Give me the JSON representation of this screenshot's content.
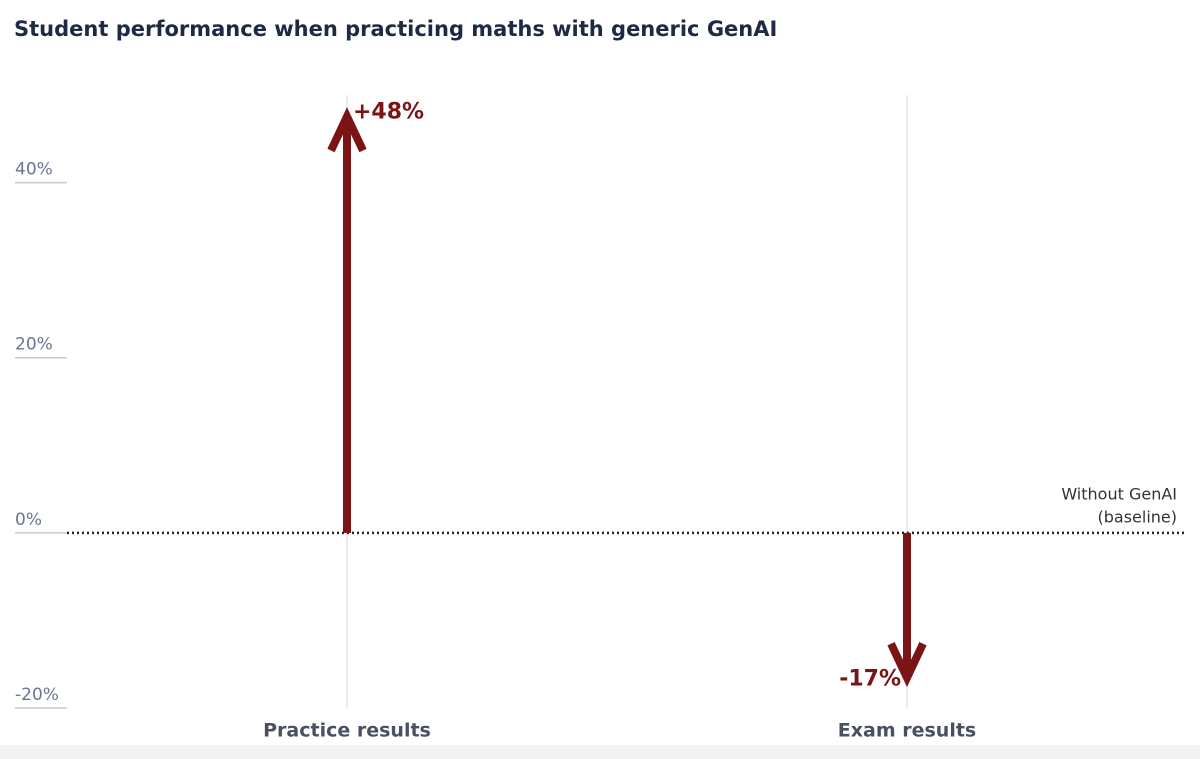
{
  "chart_data": {
    "type": "arrow",
    "title": "Student performance when practicing maths with generic GenAI",
    "categories": [
      "Practice results",
      "Exam results"
    ],
    "values": [
      48,
      -17
    ],
    "value_labels": [
      "+48%",
      "-17%"
    ],
    "color": "#7b1414",
    "ylim": [
      -20,
      50
    ],
    "yticks": [
      {
        "value": -20,
        "label": "-20%"
      },
      {
        "value": 0,
        "label": "0%"
      },
      {
        "value": 20,
        "label": "20%"
      },
      {
        "value": 40,
        "label": "40%"
      }
    ],
    "baseline_label": [
      "Without GenAI",
      "(baseline)"
    ],
    "grid": true
  }
}
